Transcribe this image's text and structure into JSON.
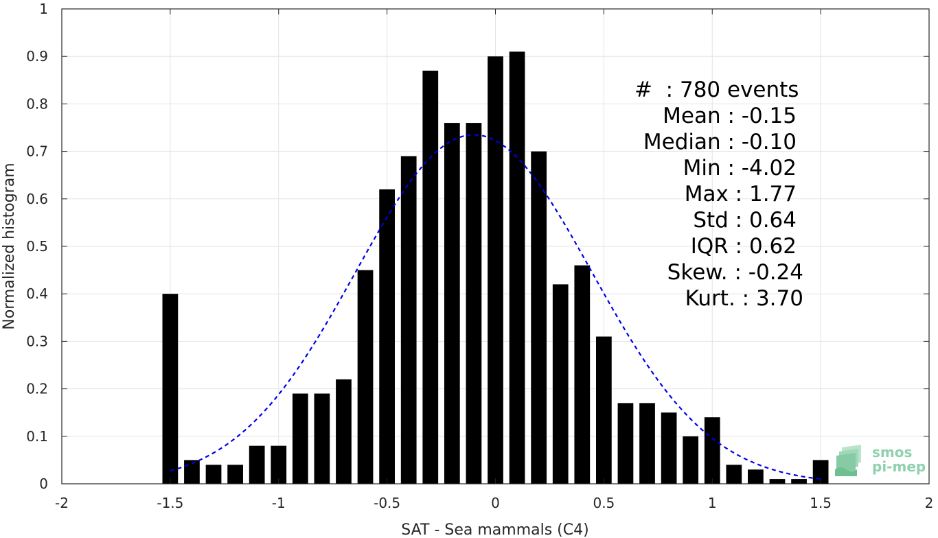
{
  "chart_data": {
    "type": "bar",
    "xlabel": "SAT - Sea mammals (C4)",
    "ylabel": "Normalized histogram",
    "xlim": [
      -2,
      2
    ],
    "ylim": [
      0,
      1
    ],
    "xticks": [
      "-2",
      "-1.5",
      "-1",
      "-0.5",
      "0",
      "0.5",
      "1",
      "1.5",
      "2"
    ],
    "yticks": [
      "0",
      "0.1",
      "0.2",
      "0.3",
      "0.4",
      "0.5",
      "0.6",
      "0.7",
      "0.8",
      "0.9",
      "1"
    ],
    "grid": true,
    "bin_width": 0.1,
    "x": [
      -1.5,
      -1.4,
      -1.3,
      -1.2,
      -1.1,
      -1.0,
      -0.9,
      -0.8,
      -0.7,
      -0.6,
      -0.5,
      -0.4,
      -0.3,
      -0.2,
      -0.1,
      0.0,
      0.1,
      0.2,
      0.3,
      0.4,
      0.5,
      0.6,
      0.7,
      0.8,
      0.9,
      1.0,
      1.1,
      1.2,
      1.3,
      1.4,
      1.5
    ],
    "values": [
      0.4,
      0.05,
      0.04,
      0.04,
      0.08,
      0.08,
      0.19,
      0.19,
      0.22,
      0.45,
      0.62,
      0.69,
      0.87,
      0.76,
      0.76,
      0.9,
      0.91,
      0.7,
      0.42,
      0.46,
      0.31,
      0.17,
      0.17,
      0.15,
      0.1,
      0.14,
      0.04,
      0.03,
      0.01,
      0.01,
      0.05
    ],
    "bar_color": "#000000",
    "fit": {
      "style": "dashed",
      "color": "#0000e6",
      "mean": -0.1,
      "std": 0.545,
      "peak": 0.735,
      "xrange": [
        -1.5,
        1.5
      ]
    }
  },
  "stats": {
    "events": "#  : 780 events",
    "mean": "Mean : -0.15",
    "median": "Median : -0.10",
    "min": "Min : -4.02",
    "max": "Max : 1.77",
    "std": "Std : 0.64",
    "iqr": "IQR : 0.62",
    "skew": "Skew. : -0.24",
    "kurt": "Kurt. : 3.70"
  },
  "logo": {
    "line1": "smos",
    "line2": "pi-mep",
    "color": "#8fd1ad"
  }
}
